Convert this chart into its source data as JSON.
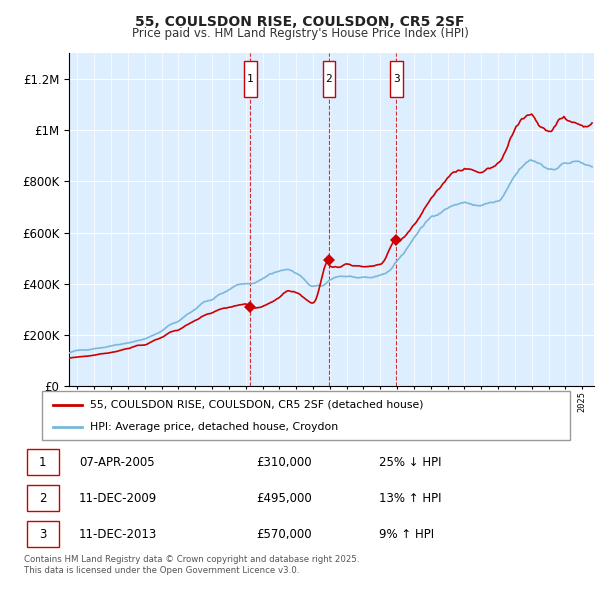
{
  "title": "55, COULSDON RISE, COULSDON, CR5 2SF",
  "subtitle": "Price paid vs. HM Land Registry's House Price Index (HPI)",
  "legend_line1": "55, COULSDON RISE, COULSDON, CR5 2SF (detached house)",
  "legend_line2": "HPI: Average price, detached house, Croydon",
  "footer": "Contains HM Land Registry data © Crown copyright and database right 2025.\nThis data is licensed under the Open Government Licence v3.0.",
  "transactions": [
    {
      "num": 1,
      "date": "07-APR-2005",
      "price": "£310,000",
      "pct": "25% ↓ HPI",
      "year": 2005.27
    },
    {
      "num": 2,
      "date": "11-DEC-2009",
      "price": "£495,000",
      "pct": "13% ↑ HPI",
      "year": 2009.95
    },
    {
      "num": 3,
      "date": "11-DEC-2013",
      "price": "£570,000",
      "pct": "9% ↑ HPI",
      "year": 2013.95
    }
  ],
  "transaction_values": [
    310000,
    495000,
    570000
  ],
  "hpi_color": "#7ab8d9",
  "price_color": "#cc0000",
  "bg_color": "#ddeeff",
  "ylim_max": 1300000,
  "xlim_start": 1994.5,
  "xlim_end": 2025.7
}
